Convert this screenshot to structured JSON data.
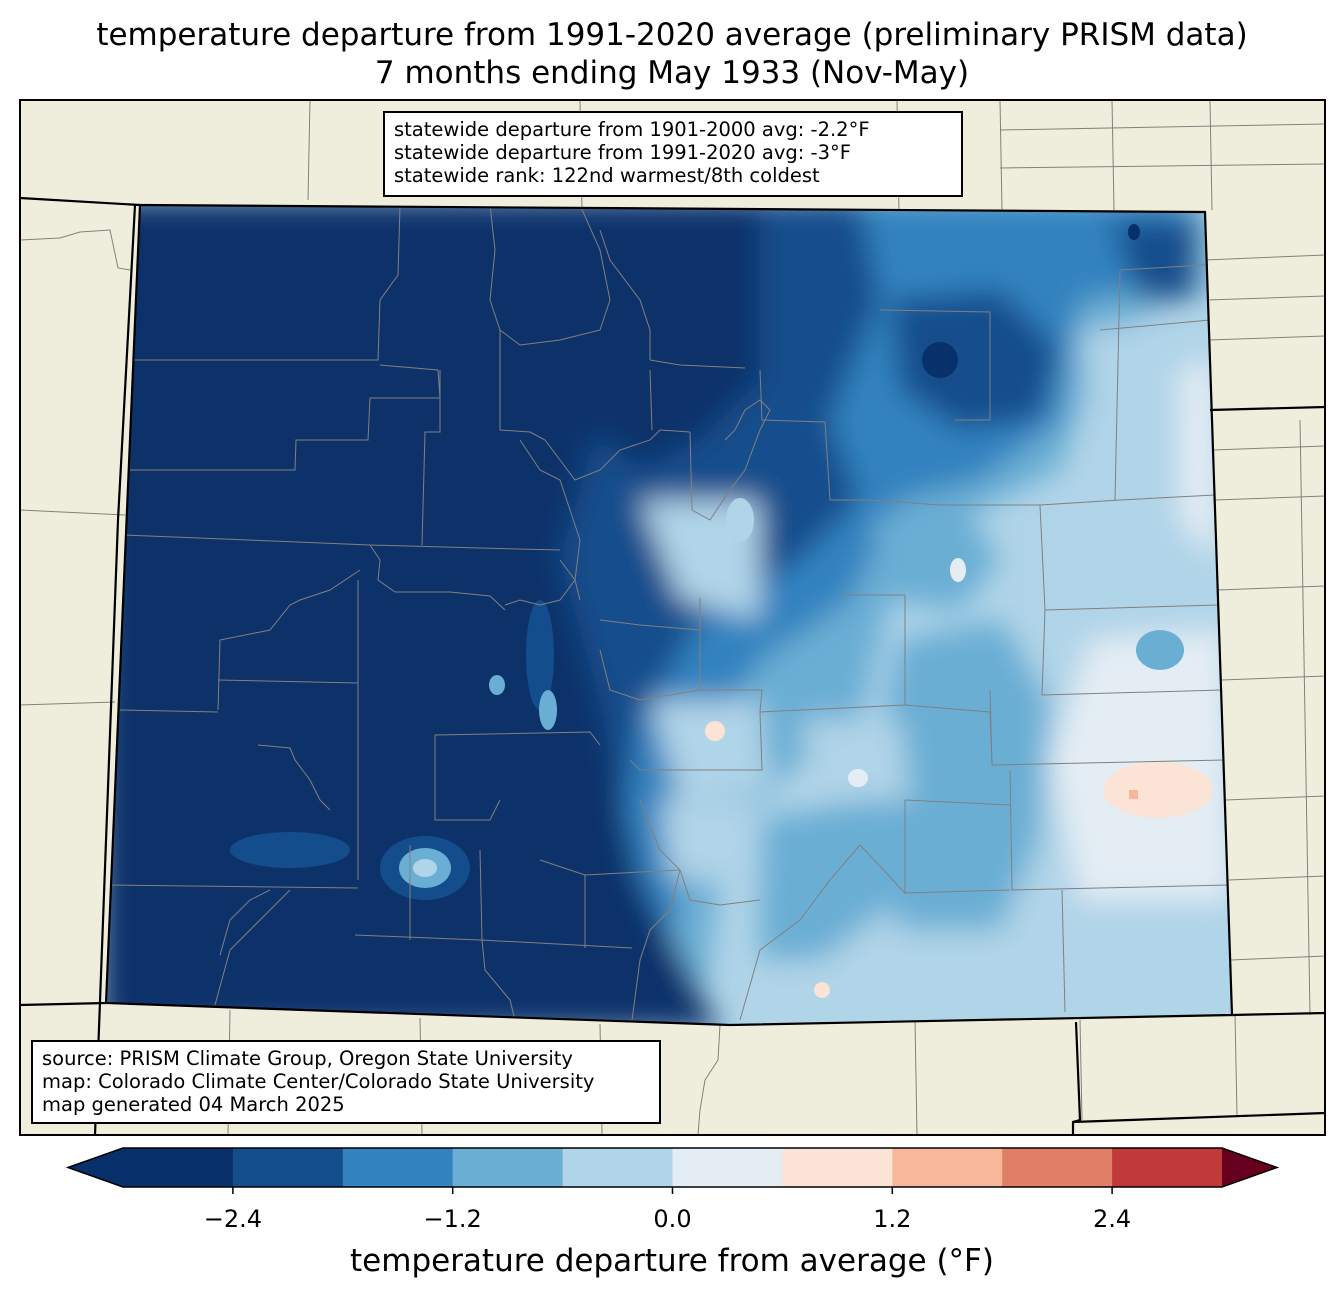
{
  "title": {
    "line1": "temperature departure from 1991-2020 average (preliminary PRISM data)",
    "line2": "7 months ending May 1933 (Nov-May)"
  },
  "stats": {
    "line1": "statewide departure from 1901-2000 avg: -2.2°F",
    "line2": "statewide departure from 1991-2020 avg: -3°F",
    "line3": "statewide rank: 122nd warmest/8th coldest"
  },
  "credits": {
    "line1": "source: PRISM Climate Group, Oregon State University",
    "line2": "map: Colorado Climate Center/Colorado State University",
    "line3": "map generated 04 March 2025"
  },
  "colorbar": {
    "label": "temperature departure from average (°F)",
    "ticks": [
      "−2.4",
      "−1.2",
      "0.0",
      "1.2",
      "2.4"
    ],
    "tick_values": [
      -2.4,
      -1.2,
      0.0,
      1.2,
      2.4
    ],
    "bounds": [
      -3.0,
      -2.4,
      -1.8,
      -1.2,
      -0.6,
      0.0,
      0.6,
      1.2,
      1.8,
      2.4,
      3.0
    ],
    "colors": [
      "#08306b",
      "#144d8c",
      "#3282bf",
      "#6aaed4",
      "#b0d4e8",
      "#e4edf4",
      "#fbe3d6",
      "#f8b79a",
      "#e07f65",
      "#c13a3a",
      "#8a0c22"
    ],
    "under_color": "#08306b",
    "over_color": "#67001f"
  },
  "map_colors": {
    "land": "#efeedc",
    "state_border": "#000000",
    "county_border": "#808080"
  }
}
